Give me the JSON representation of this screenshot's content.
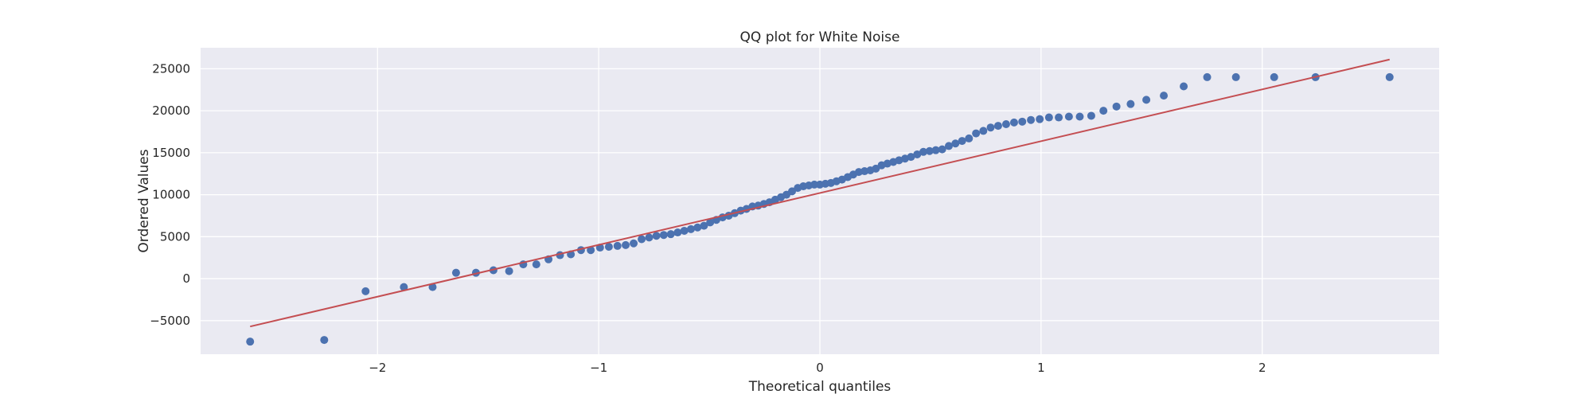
{
  "chart_data": {
    "type": "scatter",
    "title": "QQ plot for White Noise",
    "xlabel": "Theoretical quantiles",
    "ylabel": "Ordered Values",
    "xlim": [
      -2.8,
      2.8
    ],
    "ylim": [
      -9000,
      27500
    ],
    "xticks": [
      -2,
      -1,
      0,
      1,
      2
    ],
    "xtick_labels": [
      "−2",
      "−1",
      "0",
      "1",
      "2"
    ],
    "yticks": [
      -5000,
      0,
      5000,
      10000,
      15000,
      20000,
      25000
    ],
    "ytick_labels": [
      "−5000",
      "0",
      "5000",
      "10000",
      "15000",
      "20000",
      "25000"
    ],
    "grid": true,
    "colors": {
      "background": "#eaeaf2",
      "grid": "#ffffff",
      "points": "#4c72b0",
      "fit_line": "#c44e52"
    },
    "series": [
      {
        "kind": "points",
        "x": [
          -2.576,
          -2.241,
          -2.054,
          -1.881,
          -1.751,
          -1.645,
          -1.555,
          -1.476,
          -1.405,
          -1.341,
          -1.282,
          -1.227,
          -1.175,
          -1.126,
          -1.08,
          -1.036,
          -0.994,
          -0.954,
          -0.915,
          -0.878,
          -0.842,
          -0.806,
          -0.772,
          -0.739,
          -0.706,
          -0.674,
          -0.643,
          -0.613,
          -0.583,
          -0.553,
          -0.524,
          -0.496,
          -0.468,
          -0.44,
          -0.412,
          -0.385,
          -0.358,
          -0.332,
          -0.305,
          -0.279,
          -0.253,
          -0.228,
          -0.202,
          -0.176,
          -0.151,
          -0.126,
          -0.1,
          -0.075,
          -0.05,
          -0.025,
          0.0,
          0.025,
          0.05,
          0.075,
          0.1,
          0.126,
          0.151,
          0.176,
          0.202,
          0.228,
          0.253,
          0.279,
          0.305,
          0.332,
          0.358,
          0.385,
          0.412,
          0.44,
          0.468,
          0.496,
          0.524,
          0.553,
          0.583,
          0.613,
          0.643,
          0.674,
          0.706,
          0.739,
          0.772,
          0.806,
          0.842,
          0.878,
          0.915,
          0.954,
          0.994,
          1.036,
          1.08,
          1.126,
          1.175,
          1.227,
          1.282,
          1.341,
          1.405,
          1.476,
          1.555,
          1.645,
          1.751,
          1.881,
          2.054,
          2.241,
          2.576
        ],
        "y": [
          -7500,
          -7300,
          -1500,
          -1000,
          -1000,
          700,
          700,
          1000,
          900,
          1700,
          1700,
          2300,
          2800,
          2900,
          3400,
          3400,
          3700,
          3800,
          3900,
          4000,
          4200,
          4700,
          4900,
          5100,
          5200,
          5300,
          5500,
          5700,
          5900,
          6100,
          6300,
          6700,
          7000,
          7300,
          7500,
          7800,
          8100,
          8300,
          8600,
          8700,
          8900,
          9100,
          9400,
          9700,
          10000,
          10400,
          10800,
          11000,
          11100,
          11200,
          11200,
          11300,
          11400,
          11600,
          11800,
          12100,
          12400,
          12700,
          12800,
          12900,
          13100,
          13500,
          13700,
          13900,
          14100,
          14300,
          14500,
          14800,
          15100,
          15200,
          15300,
          15400,
          15800,
          16100,
          16400,
          16700,
          17300,
          17600,
          18000,
          18200,
          18400,
          18600,
          18700,
          18900,
          19000,
          19200,
          19200,
          19300,
          19300,
          19400,
          20000,
          20500,
          20800,
          21300,
          21800,
          22900,
          24000,
          24000,
          24000,
          24000,
          24000
        ]
      },
      {
        "kind": "fit_line",
        "x": [
          -2.576,
          2.576
        ],
        "y": [
          -5700,
          26100
        ]
      }
    ]
  }
}
